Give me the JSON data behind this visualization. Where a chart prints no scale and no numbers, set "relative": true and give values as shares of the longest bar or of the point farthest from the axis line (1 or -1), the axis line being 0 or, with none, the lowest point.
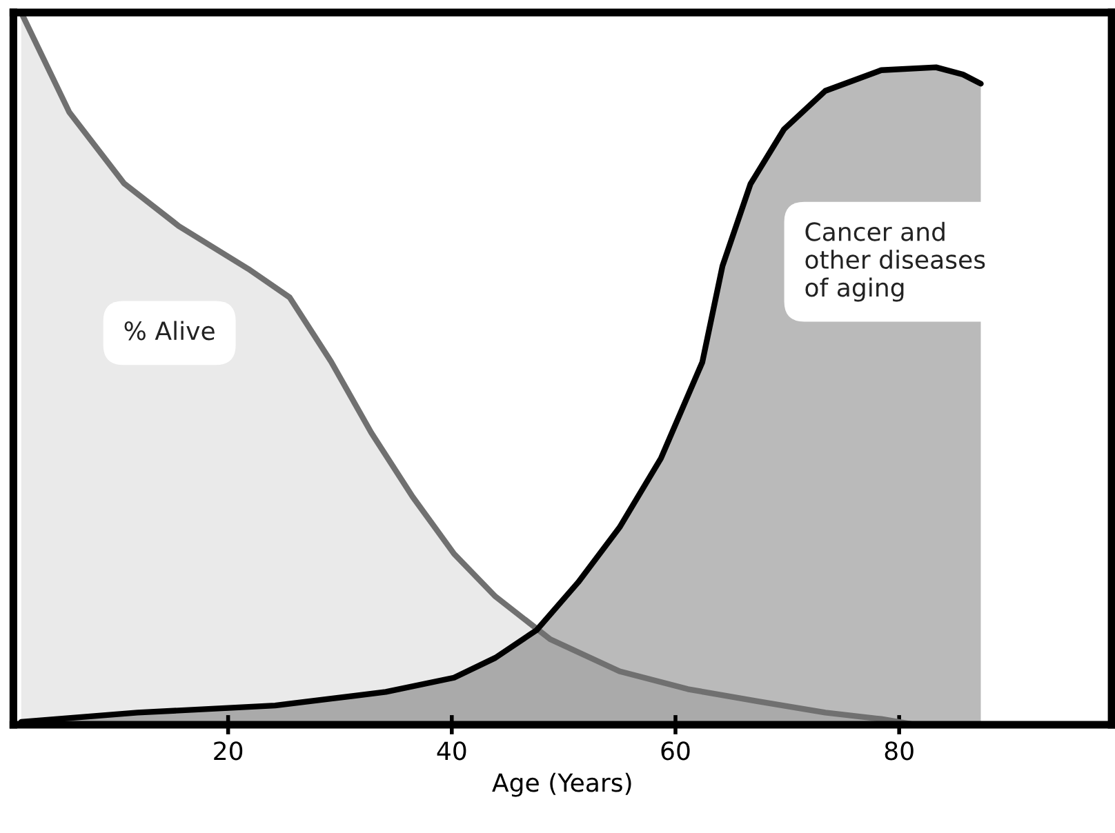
{
  "chart_data": {
    "type": "area",
    "relative": true,
    "xlabel": "Age (Years)",
    "xlim": [
      0.8,
      99
    ],
    "xticks": [
      20,
      40,
      60,
      80
    ],
    "grid": false,
    "legend": false,
    "marker": "none",
    "series": [
      {
        "name": "% Alive",
        "color": "#707070",
        "x": [
          1.5,
          5.8,
          10.7,
          15.6,
          21.8,
          25.5,
          29.2,
          32.8,
          36.5,
          40.2,
          43.9,
          48.8,
          55.0,
          61.1,
          67.3,
          73.4,
          78.4,
          81.4
        ],
        "values": [
          1,
          0.86,
          0.76,
          0.7,
          0.64,
          0.6,
          0.51,
          0.41,
          0.32,
          0.24,
          0.18,
          0.12,
          0.075,
          0.05,
          0.033,
          0.017,
          0.008,
          0
        ]
      },
      {
        "name": "Cancer and\nother diseases\nof aging",
        "color": "#000000",
        "x": [
          1.5,
          11.9,
          24.2,
          34.1,
          40.2,
          43.9,
          47.6,
          51.3,
          55.0,
          58.7,
          62.4,
          64.2,
          66.7,
          69.7,
          73.4,
          78.4,
          83.3,
          85.7,
          87.3
        ],
        "values": [
          0.004,
          0.017,
          0.027,
          0.046,
          0.066,
          0.094,
          0.133,
          0.2,
          0.277,
          0.374,
          0.509,
          0.644,
          0.759,
          0.836,
          0.89,
          0.919,
          0.923,
          0.913,
          0.9
        ]
      }
    ]
  }
}
